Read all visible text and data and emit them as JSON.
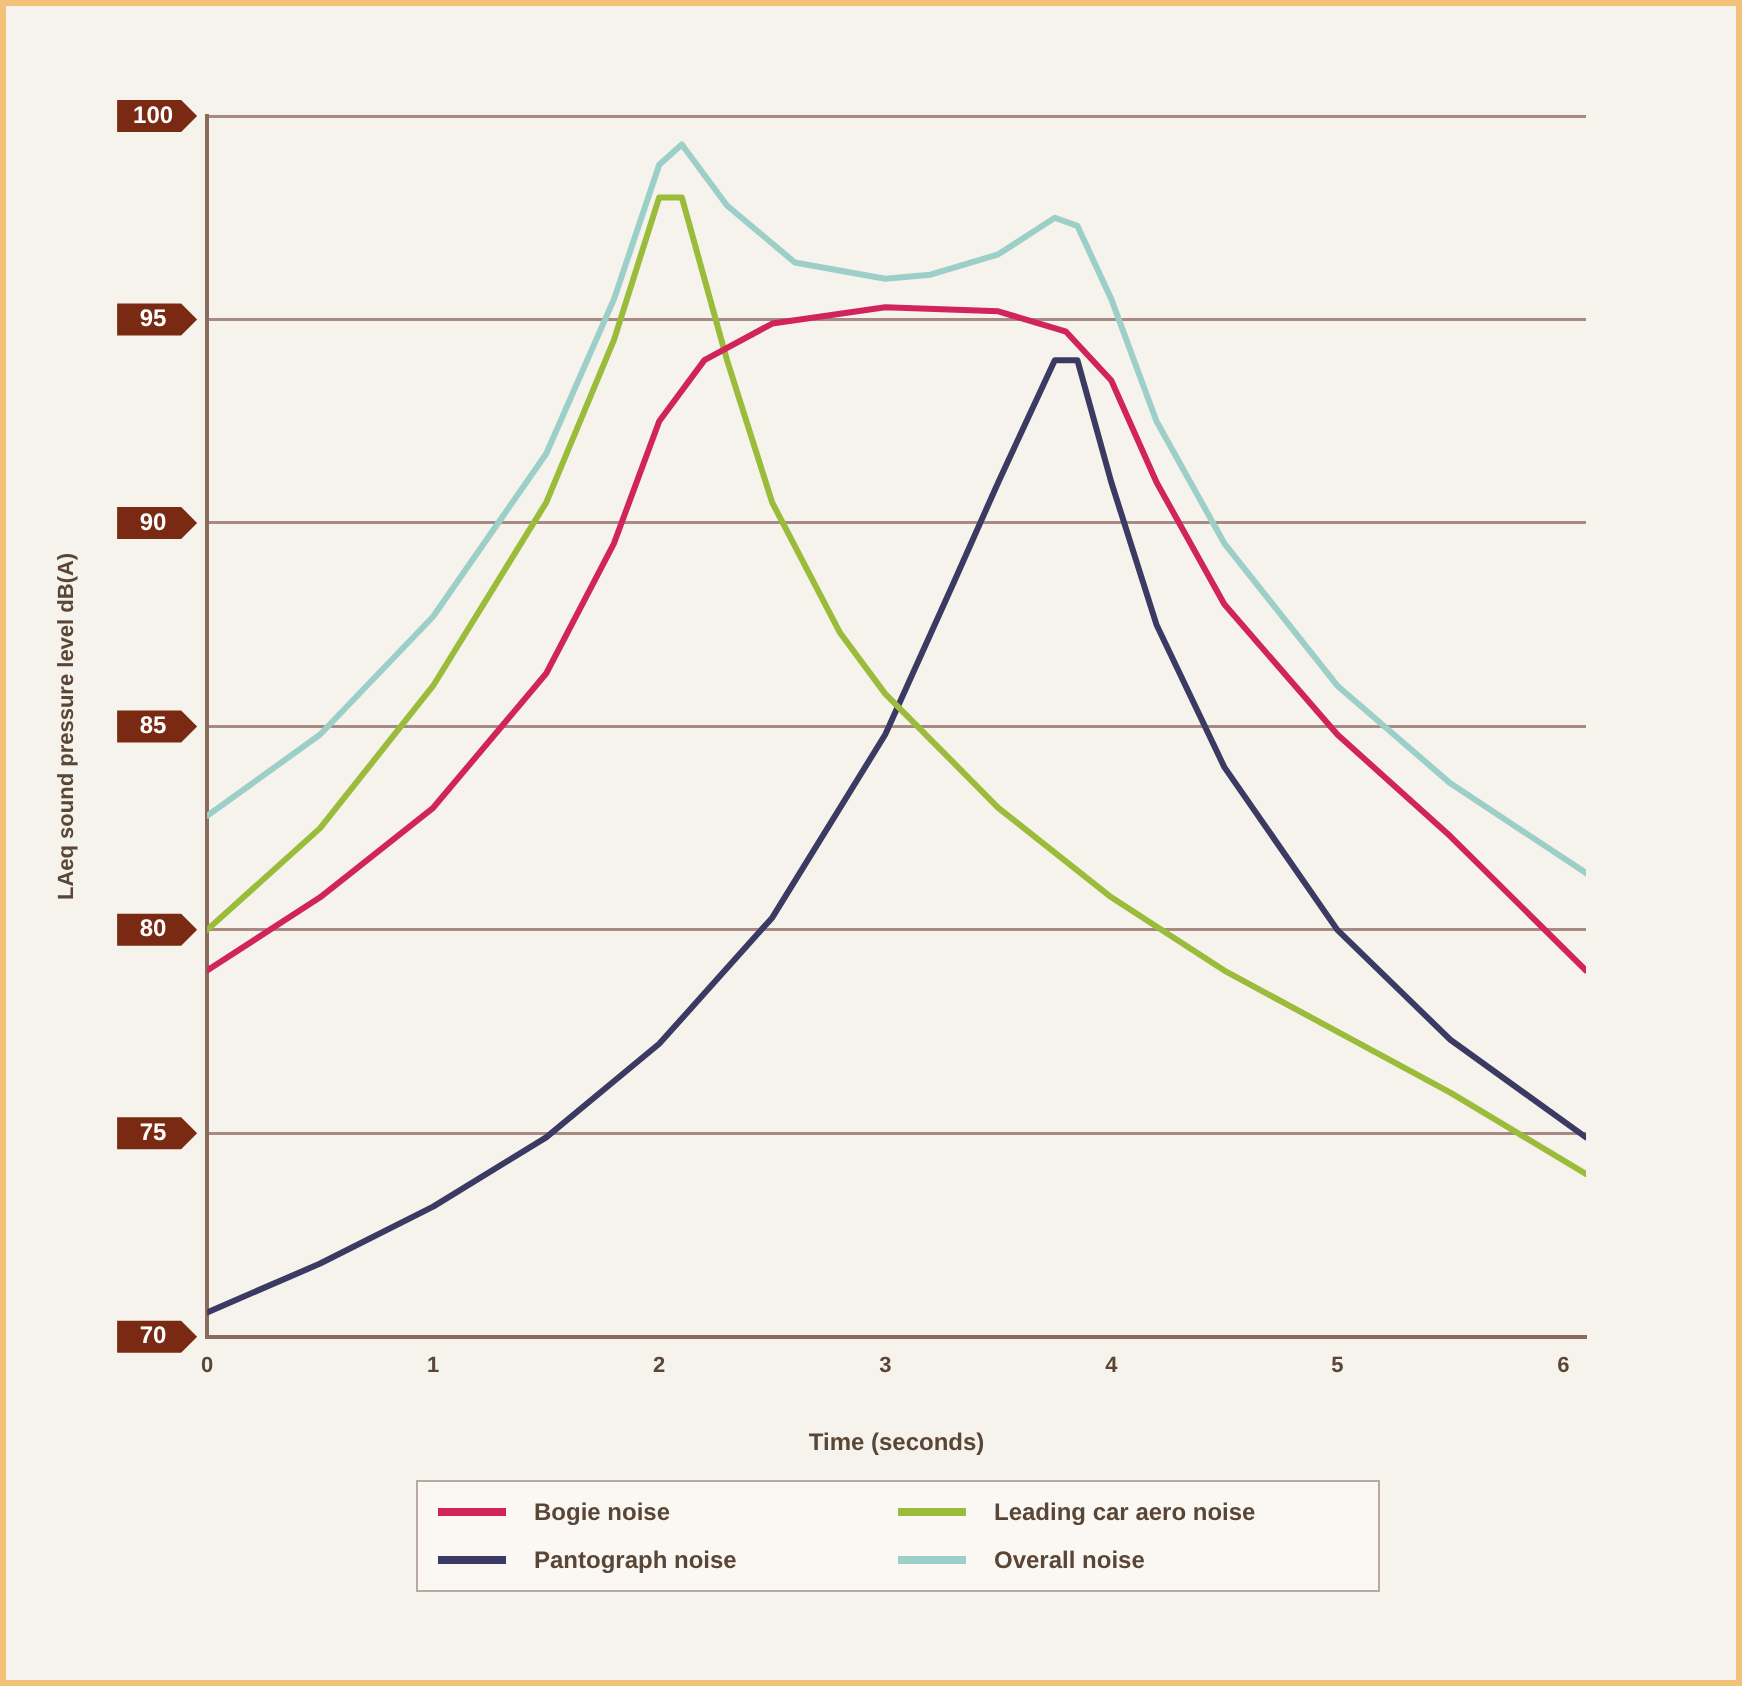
{
  "chart_data": {
    "type": "line",
    "xlabel": "Time (seconds)",
    "ylabel": "LAeq sound pressure level dB(A)",
    "xlim": [
      0,
      6.1
    ],
    "xticks": [
      0,
      1,
      2,
      3,
      4,
      5,
      6
    ],
    "ylim": [
      70,
      100
    ],
    "yticks": [
      70,
      75,
      80,
      85,
      90,
      95,
      100
    ],
    "grid": "y",
    "legend": "bottom",
    "marker": "none",
    "line_style": "solid",
    "series": [
      {
        "name": "Bogie noise",
        "color": "#d0245a",
        "x": [
          0,
          0.5,
          1,
          1.5,
          1.8,
          2.0,
          2.2,
          2.5,
          3,
          3.5,
          3.8,
          4.0,
          4.2,
          4.5,
          5,
          5.5,
          6.1
        ],
        "values": [
          79,
          80.8,
          83,
          86.3,
          89.5,
          92.5,
          94,
          94.9,
          95.3,
          95.2,
          94.7,
          93.5,
          91,
          88,
          84.8,
          82.3,
          79
        ]
      },
      {
        "name": "Leading car aero noise",
        "color": "#9bbb3a",
        "x": [
          0,
          0.5,
          1,
          1.5,
          1.8,
          2.0,
          2.1,
          2.3,
          2.5,
          2.8,
          3.0,
          3.5,
          4,
          4.5,
          5,
          5.5,
          6.1
        ],
        "values": [
          80,
          82.5,
          86,
          90.5,
          94.5,
          98,
          98,
          94,
          90.5,
          87.3,
          85.8,
          83,
          80.8,
          79,
          77.5,
          76,
          74
        ]
      },
      {
        "name": "Pantograph noise",
        "color": "#3b3a63",
        "x": [
          0,
          0.5,
          1,
          1.5,
          2,
          2.5,
          3,
          3.3,
          3.5,
          3.75,
          3.85,
          4.0,
          4.2,
          4.5,
          5,
          5.5,
          6.1
        ],
        "values": [
          70.6,
          71.8,
          73.2,
          74.9,
          77.2,
          80.3,
          84.8,
          88.5,
          91,
          94,
          94,
          91,
          87.5,
          84,
          80,
          77.3,
          74.9
        ]
      },
      {
        "name": "Overall noise",
        "color": "#9ccfc8",
        "x": [
          0,
          0.5,
          1,
          1.5,
          1.8,
          2.0,
          2.1,
          2.3,
          2.6,
          3,
          3.2,
          3.5,
          3.75,
          3.85,
          4.0,
          4.2,
          4.5,
          5,
          5.5,
          6.1
        ],
        "values": [
          82.8,
          84.8,
          87.7,
          91.7,
          95.5,
          98.8,
          99.3,
          97.8,
          96.4,
          96,
          96.1,
          96.6,
          97.5,
          97.3,
          95.5,
          92.5,
          89.5,
          86,
          83.6,
          81.4
        ]
      }
    ]
  }
}
